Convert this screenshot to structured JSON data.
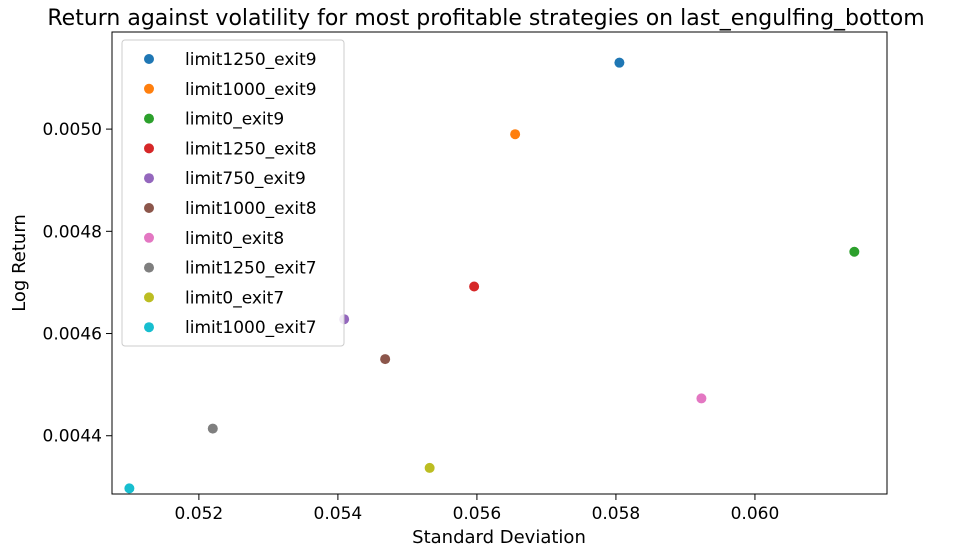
{
  "chart_data": {
    "type": "scatter",
    "title": "Return against volatility for most profitable strategies on last_engulfing_bottom",
    "xlabel": "Standard Deviation",
    "ylabel": "Log Return",
    "xlim": [
      0.05075,
      0.0619
    ],
    "ylim": [
      0.004286,
      0.00519
    ],
    "x_ticks": [
      "0.052",
      "0.054",
      "0.056",
      "0.058",
      "0.060"
    ],
    "y_ticks": [
      "0.0044",
      "0.0046",
      "0.0048",
      "0.0050"
    ],
    "grid": false,
    "legend_position": "top-left",
    "series": [
      {
        "name": "limit1250_exit9",
        "color": "#1f77b4",
        "x": 0.05805,
        "y": 0.00513
      },
      {
        "name": "limit1000_exit9",
        "color": "#ff7f0e",
        "x": 0.05655,
        "y": 0.00499
      },
      {
        "name": "limit0_exit9",
        "color": "#2ca02c",
        "x": 0.06143,
        "y": 0.00476
      },
      {
        "name": "limit1250_exit8",
        "color": "#d62728",
        "x": 0.05596,
        "y": 0.004692
      },
      {
        "name": "limit750_exit9",
        "color": "#9467bd",
        "x": 0.05409,
        "y": 0.004628
      },
      {
        "name": "limit1000_exit8",
        "color": "#8c564b",
        "x": 0.05468,
        "y": 0.00455
      },
      {
        "name": "limit0_exit8",
        "color": "#e377c2",
        "x": 0.05923,
        "y": 0.004473
      },
      {
        "name": "limit1250_exit7",
        "color": "#7f7f7f",
        "x": 0.0522,
        "y": 0.004414
      },
      {
        "name": "limit0_exit7",
        "color": "#bcbd22",
        "x": 0.05532,
        "y": 0.004337
      },
      {
        "name": "limit1000_exit7",
        "color": "#17becf",
        "x": 0.051,
        "y": 0.004297
      }
    ]
  }
}
